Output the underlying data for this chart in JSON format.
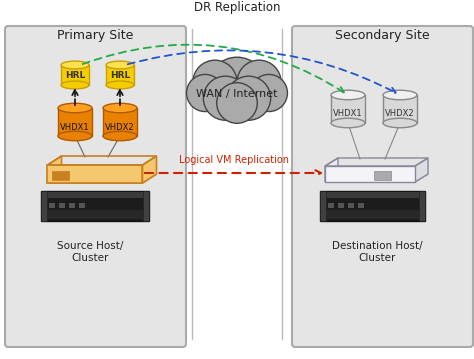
{
  "bg_color": "#f0f0f0",
  "primary_site_label": "Primary Site",
  "secondary_site_label": "Secondary Site",
  "dr_replication_label": "DR Replication",
  "wan_label": "WAN / Internet",
  "source_host_label": "Source Host/\nCluster",
  "dest_host_label": "Destination Host/\nCluster",
  "logical_vm_label": "Logical VM Replication",
  "panel_fill": "#e8e8e8",
  "panel_edge": "#aaaaaa",
  "hrl_fill": "#f5cc00",
  "hrl_edge": "#c8a000",
  "hrl_top": "#ffe050",
  "vhdx_orange_fill": "#e88000",
  "vhdx_orange_top": "#ffa020",
  "vhdx_orange_edge": "#b05800",
  "vhdx_gray_fill": "#d8d8d8",
  "vhdx_gray_top": "#f0f0f0",
  "vhdx_gray_edge": "#888888",
  "server_dark": "#1a1a1a",
  "server_mid": "#333333",
  "server_light": "#555555",
  "orange_tray_fill": "#f5c870",
  "orange_tray_edge": "#c88020",
  "gray_tray_fill": "#e0e0e8",
  "gray_tray_edge": "#888899",
  "cloud_fill": "#999999",
  "cloud_edge": "#444444",
  "cloud_text": "#222222",
  "green_dashed": "#22aa44",
  "blue_dashed": "#2255cc",
  "red_dashed": "#cc2200",
  "black_arrow": "#111111",
  "text_dark": "#222222",
  "line_dark": "#555555"
}
